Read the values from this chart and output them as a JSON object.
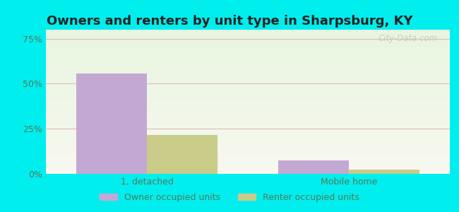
{
  "title": "Owners and renters by unit type in Sharpsburg, KY",
  "categories": [
    "1, detached",
    "Mobile home"
  ],
  "owner_values": [
    55.5,
    7.5
  ],
  "renter_values": [
    21.5,
    2.5
  ],
  "owner_color": "#c4a8d4",
  "renter_color": "#c8cc88",
  "yticks": [
    0,
    25,
    50,
    75
  ],
  "ytick_labels": [
    "0%",
    "25%",
    "50%",
    "75%"
  ],
  "ylim": [
    0,
    80
  ],
  "background_color": "#00eeee",
  "plot_bg_top": "#e8f5e0",
  "plot_bg_bottom": "#f8f8f0",
  "watermark": "City-Data.com",
  "legend_labels": [
    "Owner occupied units",
    "Renter occupied units"
  ],
  "bar_width": 0.35,
  "title_fontsize": 13,
  "tick_color": "#557755",
  "grid_color": "#ddbbbb",
  "title_color": "#222222"
}
